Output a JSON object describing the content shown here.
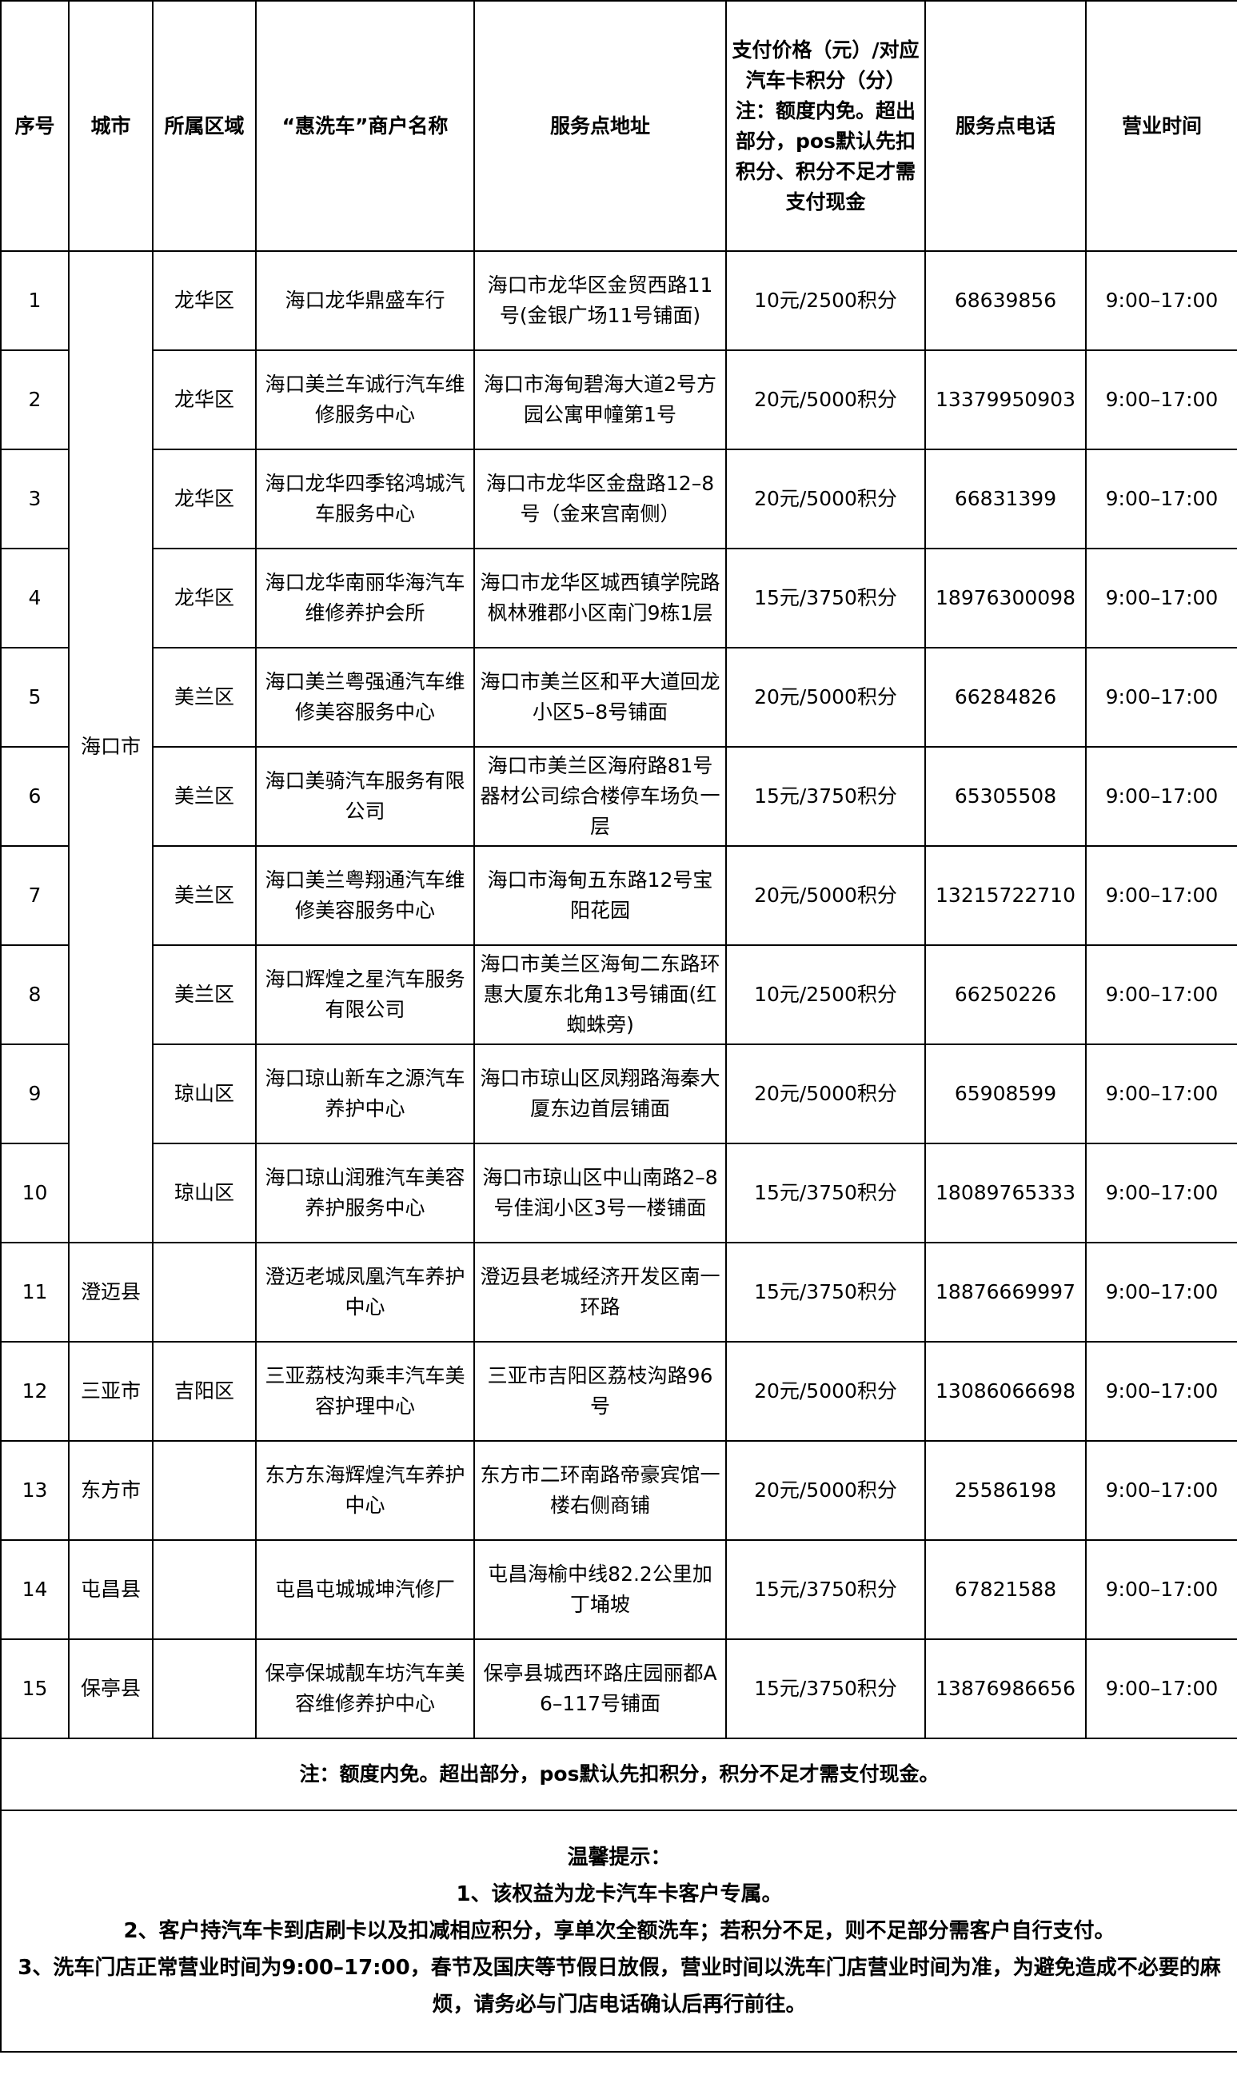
{
  "headers": {
    "index": "序号",
    "city": "城市",
    "district": "所属区域",
    "merchant": "“惠洗车”商户名称",
    "address": "服务点地址",
    "price_line1": "支付价格（元）/对应汽车卡积分（分）",
    "price_line2": "注：额度内免。超出部分，pos默认先扣积分、积分不足才需支付现金",
    "phone": "服务点电话",
    "hours": "营业时间"
  },
  "merged_city": "海口市",
  "rows": [
    {
      "index": "1",
      "district": "龙华区",
      "merchant": "海口龙华鼎盛车行",
      "address": "海口市龙华区金贸西路11号(金银广场11号铺面)",
      "price": "10元/2500积分",
      "phone": "68639856",
      "hours": "9:00–17:00"
    },
    {
      "index": "2",
      "district": "龙华区",
      "merchant": "海口美兰车诚行汽车维修服务中心",
      "address": "海口市海甸碧海大道2号方园公寓甲幢第1号",
      "price": "20元/5000积分",
      "phone": "13379950903",
      "hours": "9:00–17:00"
    },
    {
      "index": "3",
      "district": "龙华区",
      "merchant": "海口龙华四季铭鸿城汽车服务中心",
      "address": "海口市龙华区金盘路12–8号（金来宫南侧）",
      "price": "20元/5000积分",
      "phone": "66831399",
      "hours": "9:00–17:00"
    },
    {
      "index": "4",
      "district": "龙华区",
      "merchant": "海口龙华南丽华海汽车维修养护会所",
      "address": "海口市龙华区城西镇学院路枫林雅郡小区南门9栋1层",
      "price": "15元/3750积分",
      "phone": "18976300098",
      "hours": "9:00–17:00"
    },
    {
      "index": "5",
      "district": "美兰区",
      "merchant": "海口美兰粤强通汽车维修美容服务中心",
      "address": "海口市美兰区和平大道回龙小区5–8号铺面",
      "price": "20元/5000积分",
      "phone": "66284826",
      "hours": "9:00–17:00"
    },
    {
      "index": "6",
      "district": "美兰区",
      "merchant": "海口美骑汽车服务有限公司",
      "address": "海口市美兰区海府路81号器材公司综合楼停车场负一层",
      "price": "15元/3750积分",
      "phone": "65305508",
      "hours": "9:00–17:00"
    },
    {
      "index": "7",
      "district": "美兰区",
      "merchant": "海口美兰粤翔通汽车维修美容服务中心",
      "address": "海口市海甸五东路12号宝阳花园",
      "price": "20元/5000积分",
      "phone": "13215722710",
      "hours": "9:00–17:00"
    },
    {
      "index": "8",
      "district": "美兰区",
      "merchant": "海口辉煌之星汽车服务有限公司",
      "address": "海口市美兰区海甸二东路环惠大厦东北角13号铺面(红蜘蛛旁)",
      "price": "10元/2500积分",
      "phone": "66250226",
      "hours": "9:00–17:00"
    },
    {
      "index": "9",
      "district": "琼山区",
      "merchant": "海口琼山新车之源汽车养护中心",
      "address": "海口市琼山区凤翔路海秦大厦东边首层铺面",
      "price": "20元/5000积分",
      "phone": "65908599",
      "hours": "9:00–17:00"
    },
    {
      "index": "10",
      "district": "琼山区",
      "merchant": "海口琼山润雅汽车美容养护服务中心",
      "address": "海口市琼山区中山南路2–8号佳润小区3号一楼铺面",
      "price": "15元/3750积分",
      "phone": "18089765333",
      "hours": "9:00–17:00"
    },
    {
      "index": "11",
      "city": "澄迈县",
      "district": "",
      "merchant": "澄迈老城凤凰汽车养护中心",
      "address": "澄迈县老城经济开发区南一环路",
      "price": "15元/3750积分",
      "phone": "18876669997",
      "hours": "9:00–17:00"
    },
    {
      "index": "12",
      "city": "三亚市",
      "district": "吉阳区",
      "merchant": "三亚荔枝沟乘丰汽车美容护理中心",
      "address": "三亚市吉阳区荔枝沟路96号",
      "price": "20元/5000积分",
      "phone": "13086066698",
      "hours": "9:00–17:00"
    },
    {
      "index": "13",
      "city": "东方市",
      "district": "",
      "merchant": "东方东海辉煌汽车养护中心",
      "address": "东方市二环南路帝豪宾馆一楼右侧商铺",
      "price": "20元/5000积分",
      "phone": "25586198",
      "hours": "9:00–17:00"
    },
    {
      "index": "14",
      "city": "屯昌县",
      "district": "",
      "merchant": "屯昌屯城城坤汽修厂",
      "address": "屯昌海榆中线82.2公里加丁埇坡",
      "price": "15元/3750积分",
      "phone": "67821588",
      "hours": "9:00–17:00"
    },
    {
      "index": "15",
      "city": "保亭县",
      "district": "",
      "merchant": "保亭保城靓车坊汽车美容维修养护中心",
      "address": "保亭县城西环路庄园丽都A6–117号铺面",
      "price": "15元/3750积分",
      "phone": "13876986656",
      "hours": "9:00–17:00"
    }
  ],
  "note": "注：额度内免。超出部分，pos默认先扣积分，积分不足才需支付现金。",
  "tips": {
    "title": "温馨提示：",
    "items": [
      "1、该权益为龙卡汽车卡客户专属。",
      "2、客户持汽车卡到店刷卡以及扣减相应积分，享单次全额洗车；若积分不足，则不足部分需客户自行支付。",
      "3、洗车门店正常营业时间为9:00–17:00，春节及国庆等节假日放假，营业时间以洗车门店营业时间为准，为避免造成不必要的麻烦，请务必与门店电话确认后再行前往。"
    ]
  }
}
